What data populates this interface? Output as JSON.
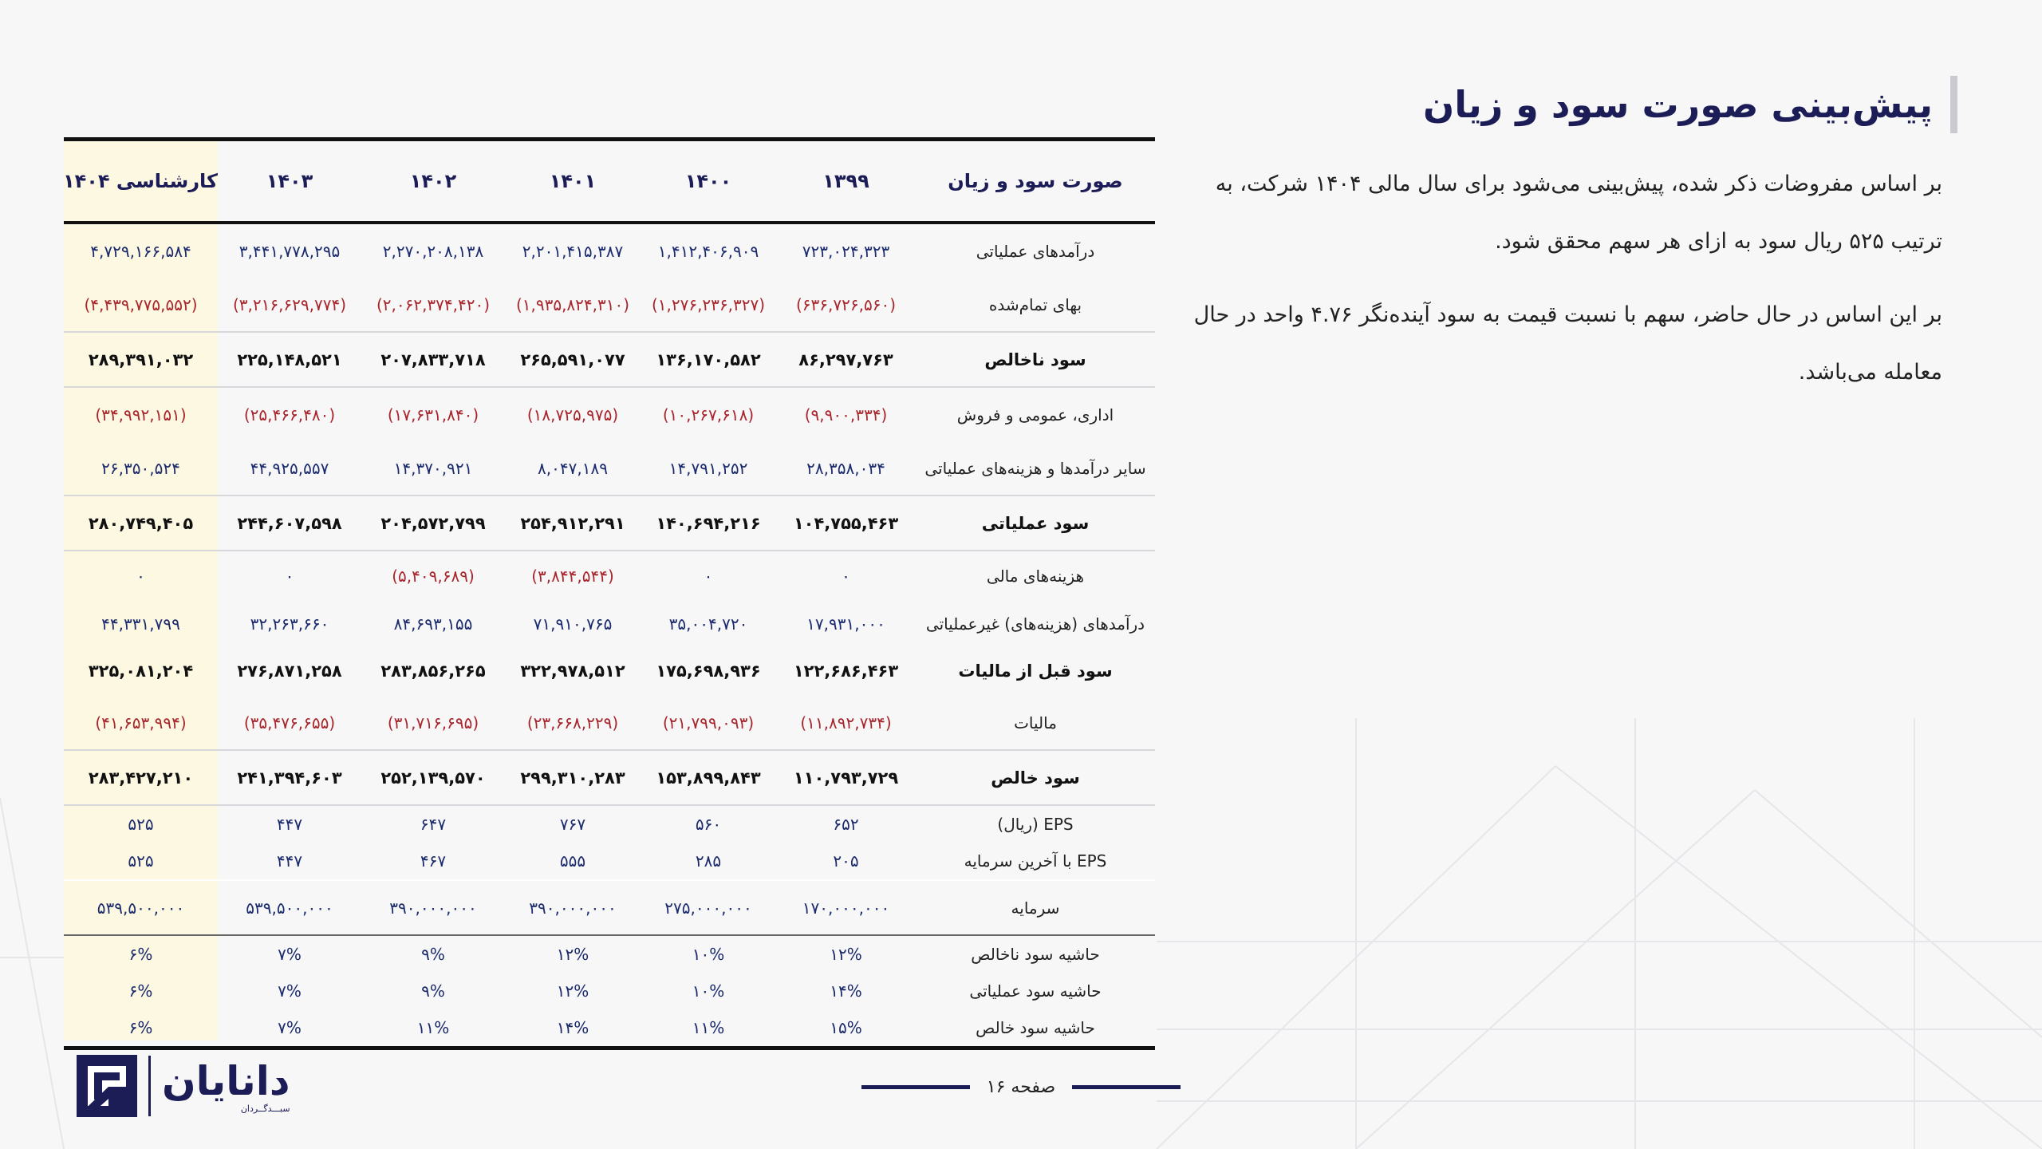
{
  "title": "پیش‌بینی صورت سود و زیان",
  "paragraphs": [
    "بر اساس مفروضات ذکر شده، پیش‌بینی می‌شود برای سال مالی ۱۴۰۴ شرکت، به ترتیب ۵۲۵ ریال سود به ازای هر سهم محقق شود.",
    "بر این اساس در حال حاضر، سهم با نسبت قیمت به سود آینده‌نگر ۴.۷۶ واحد در حال معامله می‌باشد."
  ],
  "table": {
    "headers": [
      "صورت سود و زیان",
      "۱۳۹۹",
      "۱۴۰۰",
      "۱۴۰۱",
      "۱۴۰۲",
      "۱۴۰۳",
      "کارشناسی ۱۴۰۴"
    ],
    "rows": [
      {
        "label": "درآمدهای عملیاتی",
        "values": [
          "۷۲۳,۰۲۴,۳۲۳",
          "۱,۴۱۲,۴۰۶,۹۰۹",
          "۲,۲۰۱,۴۱۵,۳۸۷",
          "۲,۲۷۰,۲۰۸,۱۳۸",
          "۳,۴۴۱,۷۷۸,۲۹۵",
          "۴,۷۲۹,۱۶۶,۵۸۴"
        ]
      },
      {
        "label": "بهای تمام‌شده",
        "values": [
          "(۶۳۶,۷۲۶,۵۶۰)",
          "(۱,۲۷۶,۲۳۶,۳۲۷)",
          "(۱,۹۳۵,۸۲۴,۳۱۰)",
          "(۲,۰۶۲,۳۷۴,۴۲۰)",
          "(۳,۲۱۶,۶۲۹,۷۷۴)",
          "(۴,۴۳۹,۷۷۵,۵۵۲)"
        ]
      },
      {
        "label": "سود ناخالص",
        "values": [
          "۸۶,۲۹۷,۷۶۳",
          "۱۳۶,۱۷۰,۵۸۲",
          "۲۶۵,۵۹۱,۰۷۷",
          "۲۰۷,۸۳۳,۷۱۸",
          "۲۲۵,۱۴۸,۵۲۱",
          "۲۸۹,۳۹۱,۰۳۲"
        ]
      },
      {
        "label": "اداری، عمومی و فروش",
        "values": [
          "(۹,۹۰۰,۳۳۴)",
          "(۱۰,۲۶۷,۶۱۸)",
          "(۱۸,۷۲۵,۹۷۵)",
          "(۱۷,۶۳۱,۸۴۰)",
          "(۲۵,۴۶۶,۴۸۰)",
          "(۳۴,۹۹۲,۱۵۱)"
        ]
      },
      {
        "label": "سایر درآمدها و هزینه‌های عملیاتی",
        "values": [
          "۲۸,۳۵۸,۰۳۴",
          "۱۴,۷۹۱,۲۵۲",
          "۸,۰۴۷,۱۸۹",
          "۱۴,۳۷۰,۹۲۱",
          "۴۴,۹۲۵,۵۵۷",
          "۲۶,۳۵۰,۵۲۴"
        ]
      },
      {
        "label": "سود عملیاتی",
        "values": [
          "۱۰۴,۷۵۵,۴۶۳",
          "۱۴۰,۶۹۴,۲۱۶",
          "۲۵۴,۹۱۲,۲۹۱",
          "۲۰۴,۵۷۲,۷۹۹",
          "۲۴۴,۶۰۷,۵۹۸",
          "۲۸۰,۷۴۹,۴۰۵"
        ]
      },
      {
        "label": "هزینه‌های مالی",
        "values": [
          "۰",
          "۰",
          "(۳,۸۴۴,۵۴۴)",
          "(۵,۴۰۹,۶۸۹)",
          "۰",
          "۰"
        ]
      },
      {
        "label": "درآمدهای (هزینه‌های) غیرعملیاتی",
        "values": [
          "۱۷,۹۳۱,۰۰۰",
          "۳۵,۰۰۴,۷۲۰",
          "۷۱,۹۱۰,۷۶۵",
          "۸۴,۶۹۳,۱۵۵",
          "۳۲,۲۶۳,۶۶۰",
          "۴۴,۳۳۱,۷۹۹"
        ]
      },
      {
        "label": "سود قبل از مالیات",
        "values": [
          "۱۲۲,۶۸۶,۴۶۳",
          "۱۷۵,۶۹۸,۹۳۶",
          "۳۲۲,۹۷۸,۵۱۲",
          "۲۸۳,۸۵۶,۲۶۵",
          "۲۷۶,۸۷۱,۲۵۸",
          "۳۲۵,۰۸۱,۲۰۴"
        ]
      },
      {
        "label": "مالیات",
        "values": [
          "(۱۱,۸۹۲,۷۳۴)",
          "(۲۱,۷۹۹,۰۹۳)",
          "(۲۳,۶۶۸,۲۲۹)",
          "(۳۱,۷۱۶,۶۹۵)",
          "(۳۵,۴۷۶,۶۵۵)",
          "(۴۱,۶۵۳,۹۹۴)"
        ]
      },
      {
        "label": "سود خالص",
        "values": [
          "۱۱۰,۷۹۳,۷۲۹",
          "۱۵۳,۸۹۹,۸۴۳",
          "۲۹۹,۳۱۰,۲۸۳",
          "۲۵۲,۱۳۹,۵۷۰",
          "۲۴۱,۳۹۴,۶۰۳",
          "۲۸۳,۴۲۷,۲۱۰"
        ]
      },
      {
        "label": "EPS (ریال)",
        "values": [
          "۶۵۲",
          "۵۶۰",
          "۷۶۷",
          "۶۴۷",
          "۴۴۷",
          "۵۲۵"
        ]
      },
      {
        "label": "EPS با آخرین سرمایه",
        "values": [
          "۲۰۵",
          "۲۸۵",
          "۵۵۵",
          "۴۶۷",
          "۴۴۷",
          "۵۲۵"
        ]
      },
      {
        "label": "سرمایه",
        "values": [
          "۱۷۰,۰۰۰,۰۰۰",
          "۲۷۵,۰۰۰,۰۰۰",
          "۳۹۰,۰۰۰,۰۰۰",
          "۳۹۰,۰۰۰,۰۰۰",
          "۵۳۹,۵۰۰,۰۰۰",
          "۵۳۹,۵۰۰,۰۰۰"
        ]
      },
      {
        "label": "حاشیه سود ناخالص",
        "values": [
          "۱۲%",
          "۱۰%",
          "۱۲%",
          "۹%",
          "۷%",
          "۶%"
        ]
      },
      {
        "label": "حاشیه سود عملیاتی",
        "values": [
          "۱۴%",
          "۱۰%",
          "۱۲%",
          "۹%",
          "۷%",
          "۶%"
        ]
      },
      {
        "label": "حاشیه سود خالص",
        "values": [
          "۱۵%",
          "۱۱%",
          "۱۴%",
          "۱۱%",
          "۷%",
          "۶%"
        ]
      }
    ]
  },
  "footer": {
    "page_label": "صفحه ۱۶",
    "logo_name": "دانایان",
    "logo_sub": "سبـــدگــردان"
  },
  "colors": {
    "brand_navy": "#1c1c57",
    "negative_red": "#a8252b",
    "highlight_column": "#fdf8e2"
  }
}
